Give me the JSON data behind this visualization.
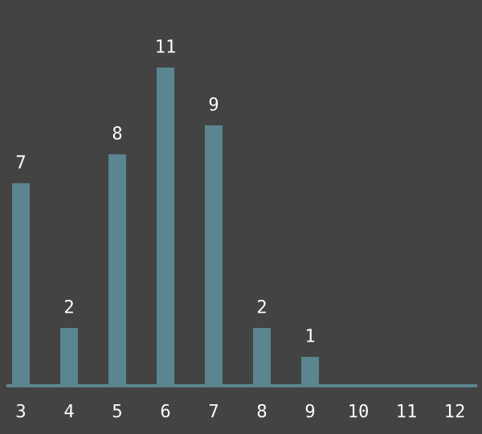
{
  "chart_data": {
    "type": "bar",
    "categories": [
      "3",
      "4",
      "5",
      "6",
      "7",
      "8",
      "9",
      "10",
      "11",
      "12"
    ],
    "values": [
      7,
      2,
      8,
      11,
      9,
      2,
      1,
      null,
      null,
      null
    ],
    "color": "#5a8591",
    "data_labels": true,
    "grid": false,
    "legend": false
  }
}
